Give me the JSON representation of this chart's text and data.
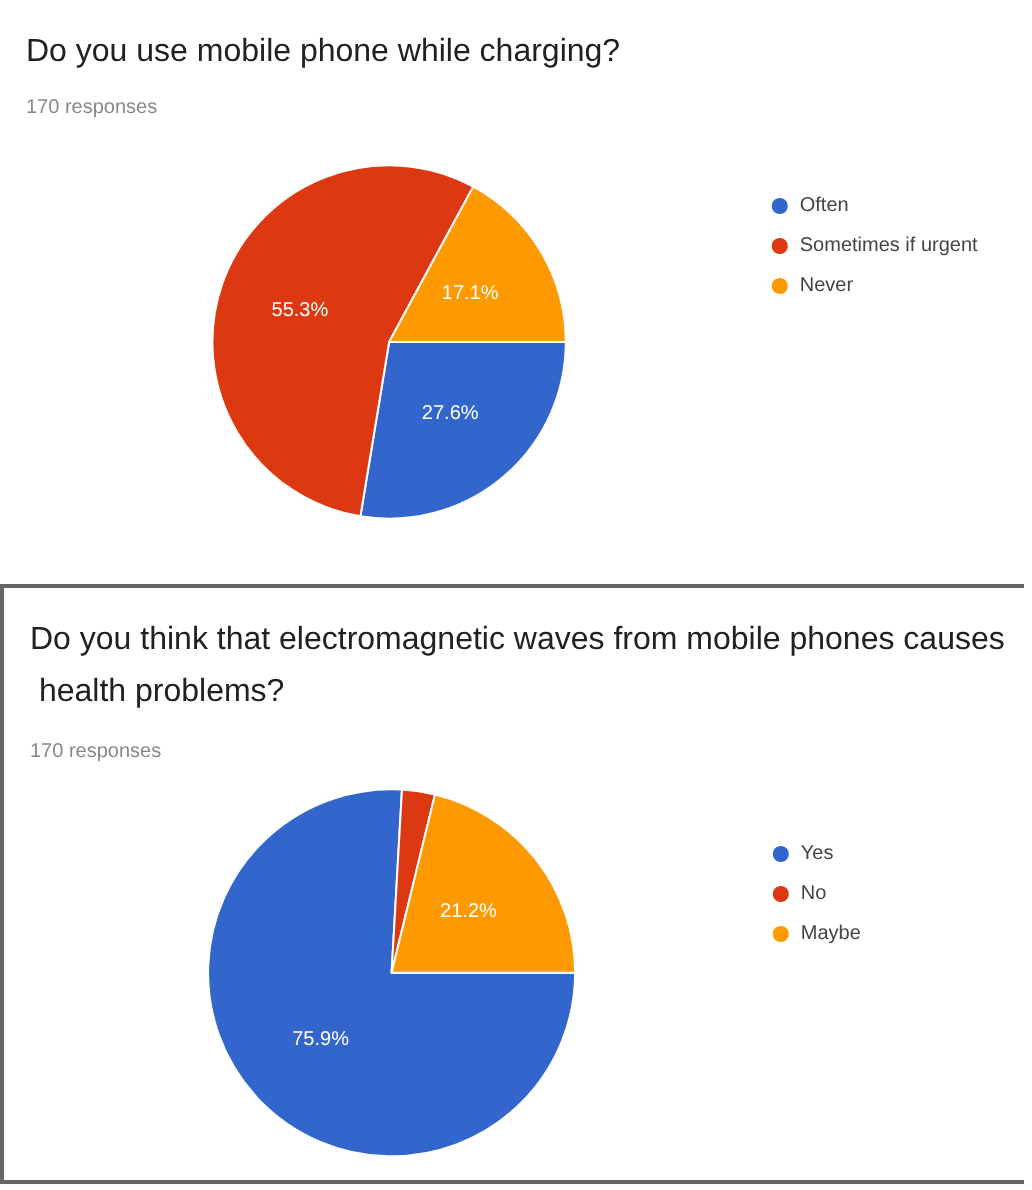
{
  "chart_data": [
    {
      "type": "pie",
      "title": "Do you use mobile phone while charging?",
      "subtitle": "170 responses",
      "categories": [
        "Often",
        "Sometimes if urgent",
        "Never"
      ],
      "values": [
        27.6,
        55.3,
        17.1
      ],
      "colors": [
        "#3366cc",
        "#dc3912",
        "#ff9900"
      ],
      "value_labels": [
        "27.6%",
        "55.3%",
        "17.1%"
      ],
      "legend": "right"
    },
    {
      "type": "pie",
      "title": "Do you think that electromagnetic waves from mobile phones causes health problems?",
      "subtitle": "170 responses",
      "categories": [
        "Yes",
        "No",
        "Maybe"
      ],
      "values": [
        75.9,
        2.9,
        21.2
      ],
      "colors": [
        "#3366cc",
        "#dc3912",
        "#ff9900"
      ],
      "value_labels": [
        "75.9%",
        null,
        "21.2%"
      ],
      "legend": "right"
    }
  ]
}
